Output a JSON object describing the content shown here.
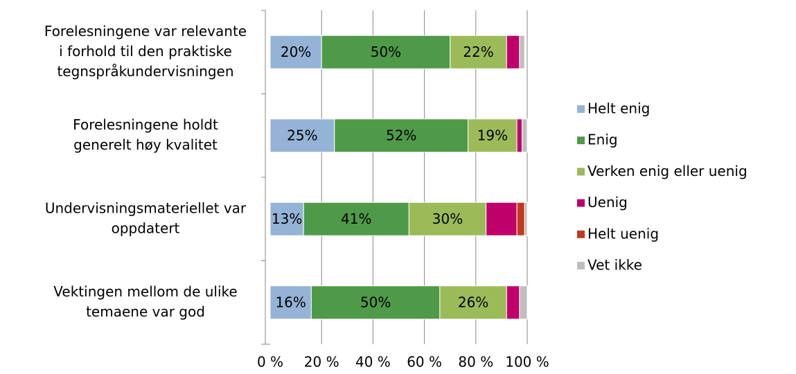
{
  "chart_data": {
    "type": "stacked_bar_horizontal",
    "categories": [
      [
        "Forelesningene var relevante",
        "i forhold til den praktiske",
        "tegnspråkundervisningen"
      ],
      [
        "Forelesningene holdt",
        "generelt høy kvalitet"
      ],
      [
        "Undervisningsmateriellet var",
        "oppdatert"
      ],
      [
        "Vektingen mellom de ulike",
        "temaene var god"
      ]
    ],
    "series": [
      {
        "name": "Helt enig",
        "color": "#95b3d7",
        "values": [
          20,
          25,
          13,
          16
        ],
        "value_labels": [
          "20%",
          "25%",
          "13%",
          "16%"
        ]
      },
      {
        "name": "Enig",
        "color": "#4f9a48",
        "values": [
          50,
          52,
          41,
          50
        ],
        "value_labels": [
          "50%",
          "52%",
          "41%",
          "50%"
        ]
      },
      {
        "name": "Verken enig eller uenig",
        "color": "#9bbb59",
        "values": [
          22,
          19,
          30,
          26
        ],
        "value_labels": [
          "22%",
          "19%",
          "30%",
          "26%"
        ]
      },
      {
        "name": "Uenig",
        "color": "#c0006a",
        "values": [
          5,
          2,
          12,
          5
        ]
      },
      {
        "name": "Helt uenig",
        "color": "#c23a1e",
        "values": [
          0,
          0,
          3,
          0
        ]
      },
      {
        "name": "Vet ikke",
        "color": "#bfbfbf",
        "values": [
          2,
          2,
          1,
          3
        ]
      }
    ],
    "xlim": [
      0,
      100
    ],
    "xticks": [
      {
        "value": 0,
        "label": "0 %"
      },
      {
        "value": 20,
        "label": "20 %"
      },
      {
        "value": 40,
        "label": "40 %"
      },
      {
        "value": 60,
        "label": "60 %"
      },
      {
        "value": 80,
        "label": "80 %"
      },
      {
        "value": 100,
        "label": "100 %"
      }
    ],
    "grid": true
  }
}
